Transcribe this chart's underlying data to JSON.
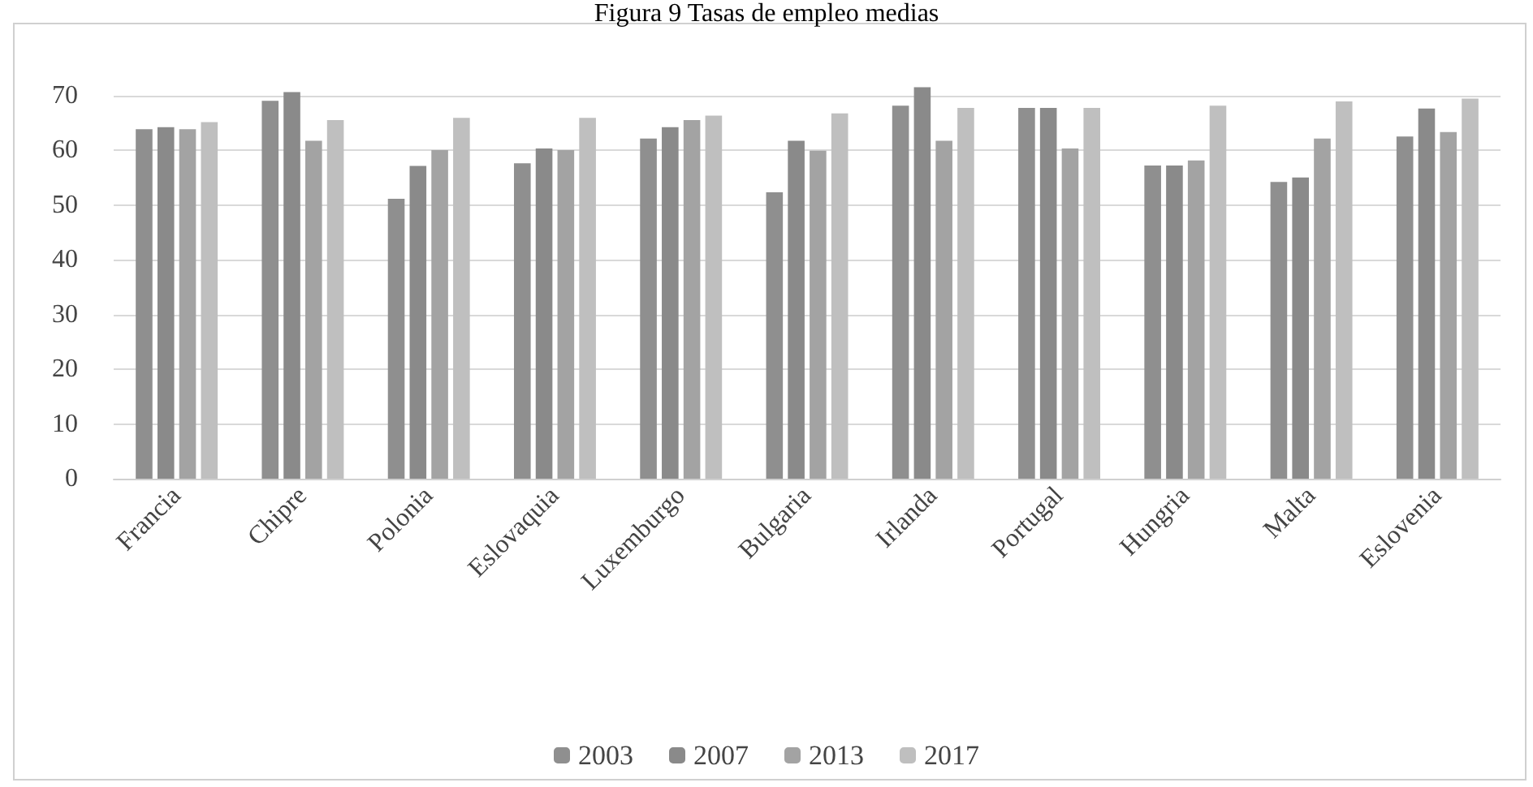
{
  "chart_data": {
    "type": "bar",
    "title": "Figura 9 Tasas de empleo medias",
    "categories": [
      "Francia",
      "Chipre",
      "Polonia",
      "Eslovaquia",
      "Luxemburgo",
      "Bulgaria",
      "Irlanda",
      "Portugal",
      "Hungria",
      "Malta",
      "Eslovenia"
    ],
    "series": [
      {
        "name": "2003",
        "color": "#8f8f8f",
        "values": [
          63.8,
          69.0,
          51.1,
          57.6,
          62.1,
          52.3,
          68.1,
          67.7,
          57.2,
          54.2,
          62.5
        ]
      },
      {
        "name": "2007",
        "color": "#8a8a8a",
        "values": [
          64.2,
          70.6,
          57.1,
          60.3,
          64.2,
          61.7,
          71.5,
          67.7,
          57.2,
          55.0,
          67.6
        ]
      },
      {
        "name": "2013",
        "color": "#a3a3a3",
        "values": [
          63.8,
          61.7,
          60.0,
          60.0,
          65.5,
          59.9,
          61.7,
          60.3,
          58.1,
          62.1,
          63.3
        ]
      },
      {
        "name": "2017",
        "color": "#bfbfbf",
        "values": [
          65.1,
          65.5,
          65.9,
          65.9,
          66.3,
          66.7,
          67.7,
          67.7,
          68.1,
          68.9,
          69.4
        ]
      }
    ],
    "ylim": [
      0,
      72
    ],
    "yticks": [
      0,
      10,
      20,
      30,
      40,
      50,
      60,
      70
    ],
    "grid": "y",
    "legend": "bottom"
  }
}
